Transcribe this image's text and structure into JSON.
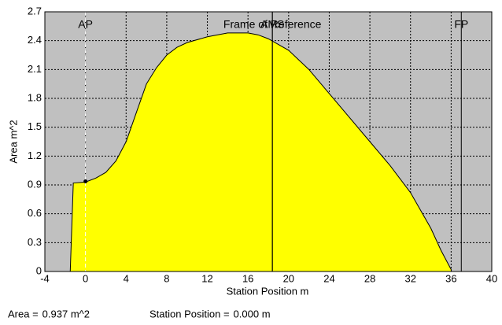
{
  "chart_data": {
    "type": "area",
    "xlabel": "Station Position  m",
    "ylabel": "Area  m^2",
    "x": [
      -1.5,
      -1.2,
      0,
      1,
      2,
      3,
      4,
      5,
      6,
      7,
      8,
      9,
      10,
      12,
      14,
      16,
      17,
      18,
      20,
      22,
      24,
      26,
      28,
      30,
      32,
      34,
      35,
      36
    ],
    "values": [
      0,
      0.92,
      0.93,
      0.97,
      1.03,
      1.15,
      1.35,
      1.65,
      1.95,
      2.12,
      2.25,
      2.33,
      2.38,
      2.44,
      2.48,
      2.48,
      2.46,
      2.42,
      2.3,
      2.1,
      1.85,
      1.6,
      1.35,
      1.1,
      0.82,
      0.45,
      0.22,
      0.02
    ],
    "color": "#ffff00",
    "background": "#c0c0c0",
    "xlim": [
      -4,
      40
    ],
    "ylim": [
      0,
      2.7
    ],
    "xticks": [
      -4,
      0,
      4,
      8,
      12,
      16,
      20,
      24,
      28,
      32,
      36,
      40
    ],
    "yticks": [
      0,
      0.3,
      0.6,
      0.9,
      1.2,
      1.5,
      1.8,
      2.1,
      2.4,
      2.7
    ],
    "grid": true,
    "markers": [
      {
        "label": "AP",
        "x": 0,
        "color": "#ffffff",
        "dashed": true
      },
      {
        "label": "Frame of Reference",
        "x": 18.4,
        "color": "#000000",
        "dashed": false
      },
      {
        "label": "AMS",
        "x": 18.4,
        "color": "#000000",
        "dashed": false
      },
      {
        "label": "FP",
        "x": 37,
        "color": "#000000",
        "dashed": false
      }
    ],
    "point": {
      "x": 0,
      "y": 0.937
    },
    "readouts": [
      {
        "label": "Area = ",
        "value": "0.937 m^2"
      },
      {
        "label": "Station Position = ",
        "value": "0.000 m"
      }
    ]
  }
}
